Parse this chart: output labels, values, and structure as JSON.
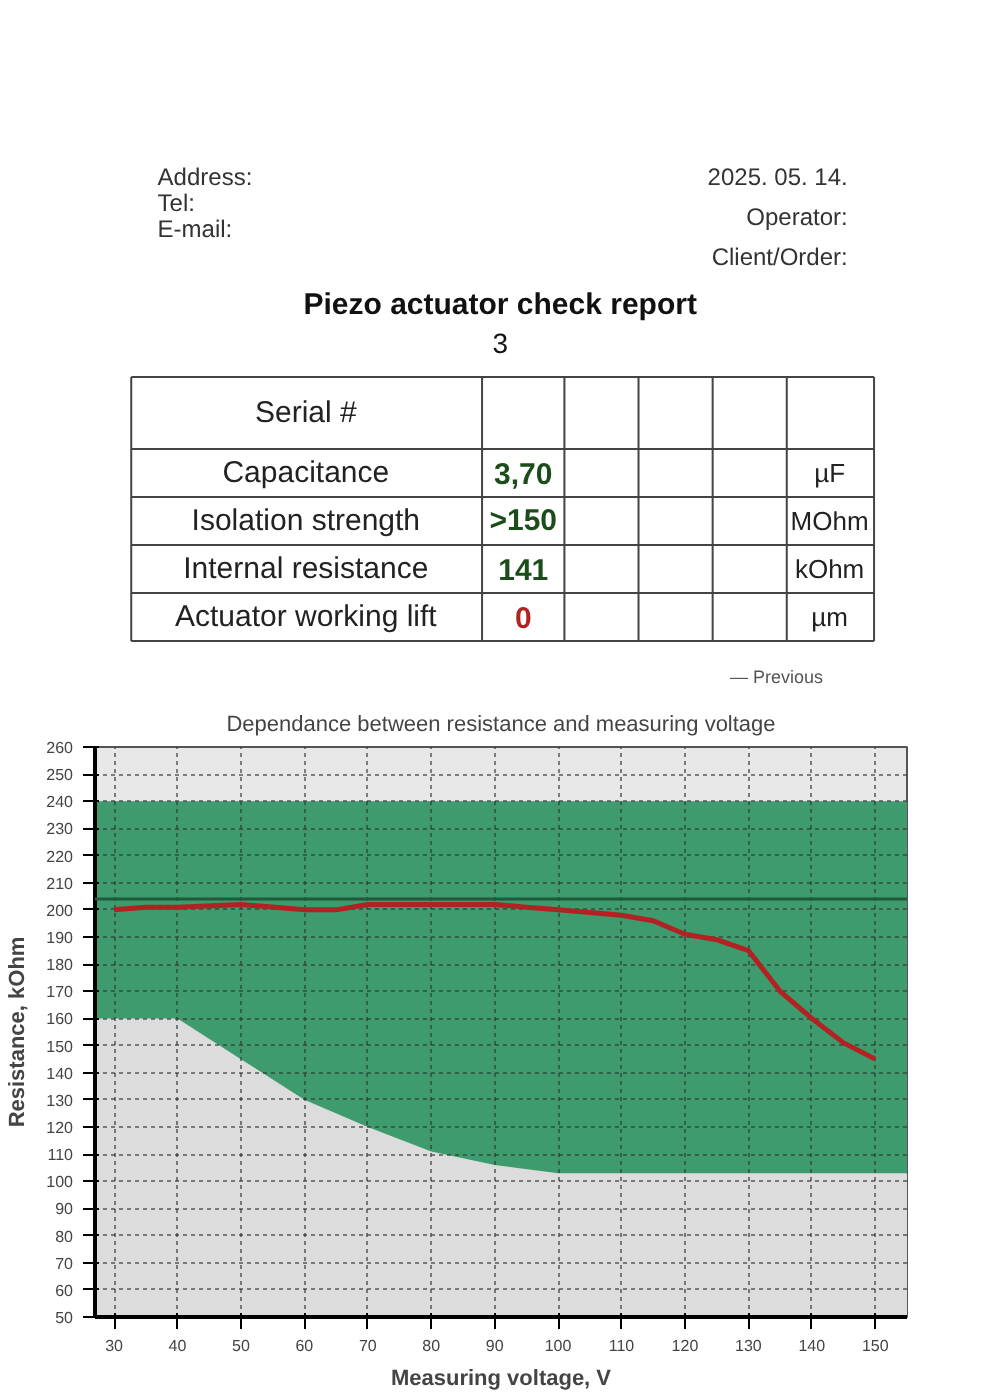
{
  "chart_data": {
    "type": "line",
    "title": "Dependance between resistance and measuring voltage",
    "xlabel": "Measuring voltage, V",
    "ylabel": "Resistance, kOhm",
    "annotations": [
      "Address:",
      "Tel:",
      "E-mail:",
      "2025. 05. 14.",
      "Operator:",
      "Client/Order:",
      "Piezo actuator check report",
      "3",
      "Serial #",
      "Capacitance",
      "3,70",
      "µF",
      "Isolation strength",
      ">150",
      "MOhm",
      "Internal resistance",
      "141",
      "kOhm",
      "Actuator working lift",
      "0",
      "µm",
      "— Previous"
    ],
    "xlim": [
      27,
      155
    ],
    "ylim": [
      50,
      260
    ],
    "xticks": [
      30,
      40,
      50,
      60,
      70,
      80,
      90,
      100,
      110,
      120,
      130,
      140,
      150
    ],
    "yticks": [
      50,
      60,
      70,
      80,
      90,
      100,
      110,
      120,
      130,
      140,
      150,
      160,
      170,
      180,
      190,
      200,
      210,
      220,
      230,
      240,
      250,
      260
    ],
    "grid": true,
    "stacked": true,
    "marker": "none",
    "line_style": "solid",
    "ref_lines": [
      {
        "axis": "y",
        "value": 204,
        "color": "#1f5a3c"
      }
    ],
    "series": [
      {
        "type": "area",
        "color": "#dcdcdc",
        "x": [
          27,
          40,
          50,
          60,
          70,
          80,
          90,
          100,
          155
        ],
        "values": [
          160,
          160,
          145,
          130,
          120,
          111,
          106,
          103,
          103
        ]
      },
      {
        "type": "area",
        "color": "#3d9b6e",
        "x": [
          27,
          40,
          50,
          60,
          70,
          80,
          90,
          100,
          155
        ],
        "values": [
          80,
          80,
          95,
          110,
          120,
          129,
          134,
          137,
          137
        ]
      },
      {
        "color": "#b22222",
        "x": [
          30,
          35,
          40,
          50,
          60,
          65,
          70,
          80,
          90,
          95,
          100,
          110,
          115,
          120,
          125,
          130,
          135,
          140,
          145,
          150
        ],
        "values": [
          200,
          201,
          201,
          202,
          200,
          200,
          202,
          202,
          202,
          201,
          200,
          198,
          196,
          191,
          189,
          185,
          170,
          160,
          151,
          145
        ]
      }
    ]
  }
}
